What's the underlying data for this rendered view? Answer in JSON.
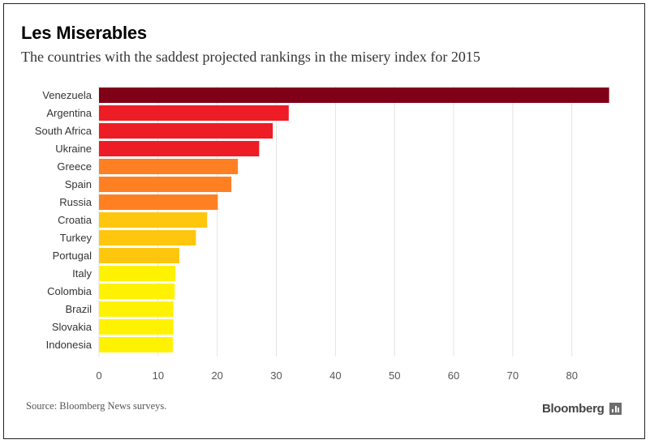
{
  "header": {
    "title": "Les Miserables",
    "subtitle": "The countries with the saddest projected rankings in the misery index for 2015"
  },
  "footer": {
    "source": "Source: Bloomberg News surveys.",
    "brand": "Bloomberg",
    "brand_icon": "bar-chart-icon"
  },
  "chart_data": {
    "type": "bar",
    "orientation": "horizontal",
    "title": "Les Miserables",
    "subtitle": "The countries with the saddest projected rankings in the misery index for 2015",
    "xlabel": "",
    "ylabel": "",
    "xlim": [
      0,
      88
    ],
    "xticks": [
      0,
      10,
      20,
      30,
      40,
      50,
      60,
      70,
      80
    ],
    "grid": true,
    "legend": "none",
    "categories": [
      "Venezuela",
      "Argentina",
      "South Africa",
      "Ukraine",
      "Greece",
      "Spain",
      "Russia",
      "Croatia",
      "Turkey",
      "Portugal",
      "Italy",
      "Colombia",
      "Brazil",
      "Slovakia",
      "Indonesia"
    ],
    "values": [
      86.3,
      32.1,
      29.4,
      27.1,
      23.5,
      22.4,
      20.1,
      18.3,
      16.4,
      13.6,
      12.9,
      12.8,
      12.6,
      12.6,
      12.5
    ],
    "colors": [
      "#800018",
      "#ee1c24",
      "#ee1c24",
      "#ee1c24",
      "#ff8022",
      "#ff8022",
      "#ff8022",
      "#ffc60e",
      "#ffc60e",
      "#ffc60e",
      "#fff200",
      "#fff200",
      "#fff200",
      "#fff200",
      "#fff200"
    ]
  }
}
